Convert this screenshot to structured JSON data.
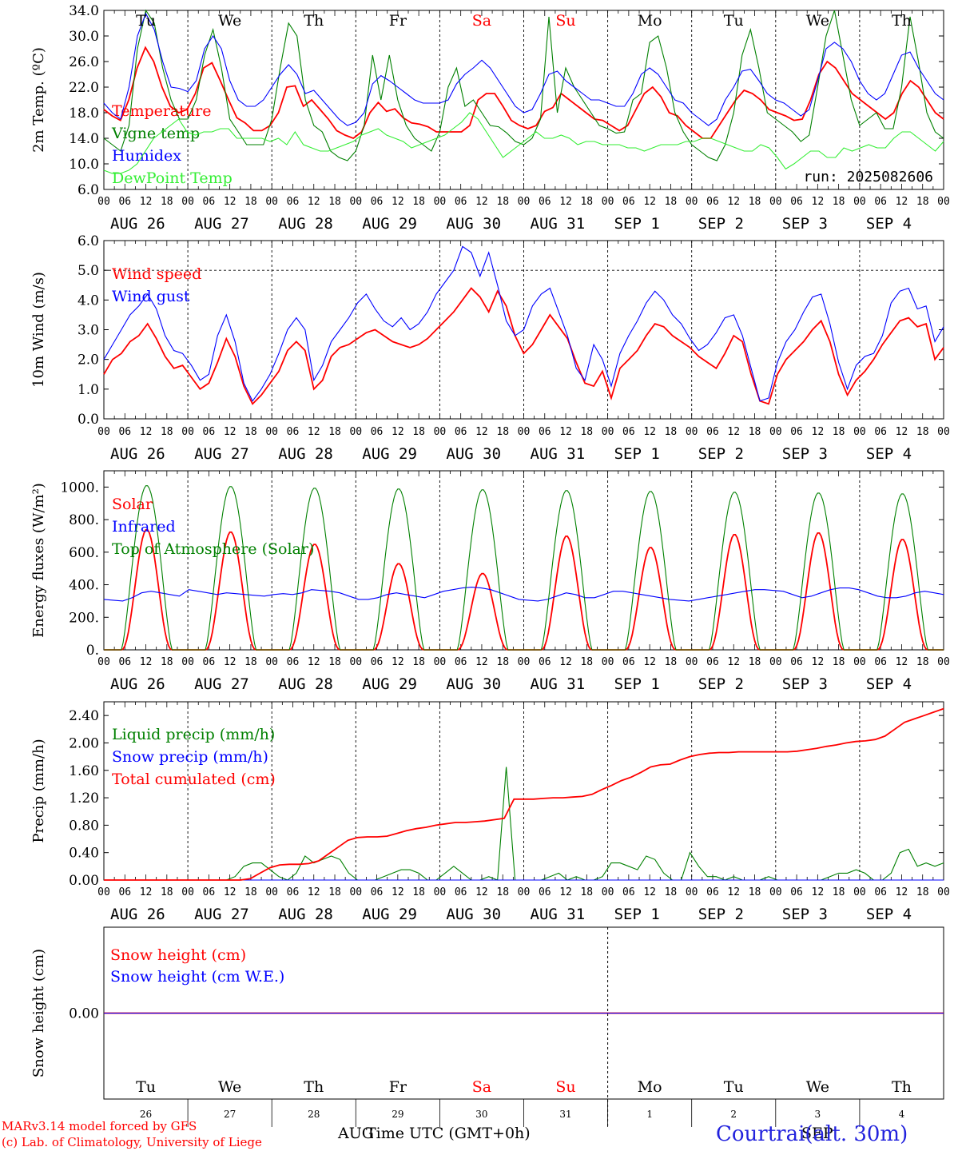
{
  "colors": {
    "red": "#ff0000",
    "green": "#008000",
    "blue": "#0000ff",
    "lightgreen": "#33ee33",
    "black": "#000000"
  },
  "day_labels": [
    "AUG 26",
    "AUG 27",
    "AUG 28",
    "AUG 29",
    "AUG 30",
    "AUG 31",
    "SEP  1",
    "SEP  2",
    "SEP  3",
    "SEP  4"
  ],
  "weekdays": [
    "Tu",
    "We",
    "Th",
    "Fr",
    "Sa",
    "Su",
    "Mo",
    "Tu",
    "We",
    "Th"
  ],
  "weekend_days": [
    "Sa",
    "Su"
  ],
  "hour_ticks": [
    "00",
    "06",
    "12",
    "18"
  ],
  "day_numbers": [
    "26",
    "27",
    "28",
    "29",
    "30",
    "31",
    "1",
    "2",
    "3",
    "4"
  ],
  "footer": {
    "credit1": "MARv3.14 model forced by GFS",
    "credit2": "(c) Lab. of Climatology, University of Liege",
    "xlabel": "Time UTC (GMT+0h)",
    "month_left": "AUG",
    "month_right": "SEP",
    "station": "Courtrai(alt. 30m)"
  },
  "chart_data": [
    {
      "type": "line",
      "ylabel": "2m Temp. (ºC)",
      "ylim": [
        6.0,
        34.0
      ],
      "yticks": [
        "6.0",
        "10.0",
        "14.0",
        "18.0",
        "22.0",
        "26.0",
        "30.0",
        "34.0"
      ],
      "annotation": "run: 2025082606",
      "x_days": 10,
      "series": [
        {
          "name": "Temperature",
          "color": "red",
          "values": [
            18.5,
            17.5,
            16.8,
            20,
            25,
            28.2,
            26,
            22,
            19,
            18,
            18.5,
            21,
            25,
            25.8,
            23,
            20,
            17.2,
            16.4,
            15.2,
            15.2,
            16,
            18,
            22,
            22.2,
            19,
            20,
            18.5,
            17,
            15.2,
            14.5,
            14,
            15,
            18,
            19.6,
            18.2,
            18.6,
            17.2,
            16.4,
            16.2,
            15.8,
            15,
            15,
            15,
            15,
            16,
            20,
            21,
            21,
            19,
            16.8,
            16,
            15.5,
            16,
            18.2,
            18.8,
            21,
            20,
            19,
            18,
            17,
            16.8,
            16,
            15.2,
            16,
            18.5,
            21,
            22,
            20.5,
            18,
            17.5,
            16,
            15,
            14,
            14,
            16,
            18,
            20,
            21.5,
            21,
            20,
            18.5,
            18,
            17.5,
            16.8,
            17,
            20,
            24,
            26,
            25,
            23,
            21,
            20,
            19,
            18,
            17,
            18,
            21,
            23,
            22,
            20,
            18,
            17
          ]
        },
        {
          "name": "Vigne temp",
          "color": "green",
          "values": [
            14,
            13,
            12,
            16,
            28,
            34,
            32,
            25,
            20,
            17,
            17,
            20,
            27,
            31,
            25,
            17,
            15,
            13,
            13,
            13,
            17,
            25,
            32,
            30,
            20,
            16,
            15,
            12,
            11,
            10.5,
            12,
            16,
            27,
            20,
            27,
            20,
            16,
            14,
            13,
            12,
            15,
            22,
            25,
            19,
            20,
            18,
            16,
            15.8,
            14.8,
            13.5,
            13,
            14,
            17,
            33,
            18,
            25,
            22,
            20,
            18,
            16,
            15.5,
            14.8,
            15,
            20,
            21,
            29,
            30,
            25,
            18,
            15,
            13,
            12,
            11,
            10.5,
            13,
            18,
            27,
            31,
            25,
            18,
            17,
            16,
            15,
            13.5,
            14.5,
            22,
            30,
            34,
            27,
            20,
            16,
            17,
            18,
            15.5,
            15.5,
            22,
            33,
            26,
            18,
            15,
            14
          ]
        },
        {
          "name": "Humidex",
          "color": "blue",
          "values": [
            19.5,
            18,
            17,
            22,
            30,
            33.5,
            31,
            26,
            22,
            21.8,
            21.3,
            23,
            28,
            30,
            28,
            23,
            20,
            19,
            19,
            20,
            22,
            24,
            25.5,
            24,
            21,
            21.5,
            20,
            18.5,
            17,
            16,
            16.5,
            18,
            22.5,
            23.8,
            23,
            22,
            21,
            20,
            19.5,
            19.5,
            19.5,
            20,
            22.5,
            24,
            25,
            26.2,
            25,
            23,
            21,
            19,
            18,
            18.5,
            21,
            24,
            24.5,
            23,
            22,
            21,
            20,
            20,
            19.5,
            19,
            19,
            21,
            24,
            25,
            24,
            22,
            20,
            19.5,
            18,
            17,
            16,
            17,
            20,
            22,
            24.5,
            24.8,
            23,
            21,
            20,
            19.5,
            18.5,
            17.5,
            18.5,
            23,
            28,
            29,
            28,
            26,
            23,
            21,
            20,
            21,
            24,
            27,
            27.5,
            25,
            23,
            21,
            20
          ]
        },
        {
          "name": "DewPoint Temp",
          "color": "lightgreen",
          "values": [
            9,
            8.5,
            8.5,
            9,
            10,
            12,
            14,
            15,
            16,
            17,
            15,
            14.5,
            15,
            15,
            15.5,
            15.5,
            14,
            14,
            14,
            14,
            13.5,
            14,
            13,
            15,
            13,
            12.5,
            12,
            12,
            12.5,
            13,
            13.5,
            14.5,
            15,
            15.5,
            14.5,
            14,
            13.5,
            12.5,
            13,
            13.5,
            14,
            14.5,
            15.5,
            16.5,
            18,
            17,
            15,
            13,
            11,
            12,
            13,
            14,
            15,
            14,
            14,
            14.5,
            14,
            13,
            13.5,
            13.5,
            13,
            13,
            13,
            12.5,
            12.5,
            12,
            12.5,
            13,
            13,
            13,
            13.5,
            13.5,
            14,
            14,
            13.5,
            13,
            12.5,
            12,
            12,
            13,
            12.5,
            11,
            9.2,
            10,
            11,
            12,
            12,
            11,
            11,
            12.5,
            12,
            12.5,
            13,
            12.5,
            12.5,
            14,
            15,
            15,
            14,
            13,
            12,
            13.5
          ]
        }
      ]
    },
    {
      "type": "line",
      "ylabel": "10m Wind (m/s)",
      "ylim": [
        0.0,
        6.0
      ],
      "yticks": [
        "0.0",
        "1.0",
        "2.0",
        "3.0",
        "4.0",
        "5.0",
        "6.0"
      ],
      "hline": 5.0,
      "x_days": 10,
      "series": [
        {
          "name": "Wind speed",
          "color": "red",
          "values": [
            1.5,
            2,
            2.2,
            2.6,
            2.8,
            3.2,
            2.7,
            2.1,
            1.7,
            1.8,
            1.4,
            1.0,
            1.2,
            1.9,
            2.7,
            2.1,
            1.1,
            0.5,
            0.8,
            1.2,
            1.6,
            2.3,
            2.6,
            2.3,
            1.0,
            1.3,
            2.1,
            2.4,
            2.5,
            2.7,
            2.9,
            3.0,
            2.8,
            2.6,
            2.5,
            2.4,
            2.5,
            2.7,
            3.0,
            3.3,
            3.6,
            4.0,
            4.4,
            4.1,
            3.6,
            4.3,
            3.8,
            2.8,
            2.2,
            2.5,
            3.0,
            3.5,
            3.1,
            2.7,
            1.9,
            1.2,
            1.1,
            1.6,
            0.7,
            1.7,
            2.0,
            2.3,
            2.8,
            3.2,
            3.1,
            2.8,
            2.6,
            2.4,
            2.1,
            1.9,
            1.7,
            2.2,
            2.8,
            2.6,
            1.5,
            0.6,
            0.5,
            1.5,
            2.0,
            2.3,
            2.6,
            3.0,
            3.3,
            2.6,
            1.5,
            0.8,
            1.3,
            1.6,
            2.0,
            2.5,
            2.9,
            3.3,
            3.4,
            3.1,
            3.2,
            2.0,
            2.4
          ]
        },
        {
          "name": "Wind gust",
          "color": "blue",
          "values": [
            2,
            2.5,
            3,
            3.5,
            3.8,
            4.2,
            3.7,
            2.8,
            2.3,
            2.2,
            1.8,
            1.3,
            1.5,
            2.8,
            3.5,
            2.6,
            1.2,
            0.6,
            1.0,
            1.5,
            2.2,
            3.0,
            3.4,
            3.0,
            1.3,
            1.8,
            2.6,
            3.0,
            3.4,
            3.9,
            4.2,
            3.7,
            3.3,
            3.1,
            3.4,
            3.0,
            3.2,
            3.6,
            4.2,
            4.6,
            5.0,
            5.8,
            5.6,
            4.8,
            5.6,
            4.5,
            3.3,
            2.8,
            3.0,
            3.8,
            4.2,
            4.4,
            3.6,
            2.8,
            1.7,
            1.3,
            2.5,
            2.0,
            1.1,
            2.2,
            2.8,
            3.3,
            3.9,
            4.3,
            4.0,
            3.5,
            3.2,
            2.7,
            2.3,
            2.5,
            2.9,
            3.4,
            3.5,
            2.8,
            1.7,
            0.6,
            0.7,
            1.9,
            2.6,
            3.0,
            3.6,
            4.1,
            4.2,
            3.2,
            1.9,
            1.0,
            1.8,
            2.1,
            2.2,
            2.8,
            3.9,
            4.3,
            4.4,
            3.7,
            3.8,
            2.6,
            3.1
          ]
        }
      ]
    },
    {
      "type": "line",
      "ylabel": "Energy fluxes (W/m²)",
      "ylim": [
        0,
        1100
      ],
      "yticks": [
        "0.",
        "200.",
        "400.",
        "600.",
        "800.",
        "1000."
      ],
      "x_days": 10,
      "series": [
        {
          "name": "Solar",
          "color": "red",
          "peaks": [
            740,
            725,
            650,
            530,
            470,
            700,
            630,
            710,
            720,
            680
          ]
        },
        {
          "name": "Infrared",
          "color": "blue",
          "values": [
            310,
            305,
            300,
            320,
            350,
            360,
            350,
            340,
            330,
            370,
            360,
            350,
            340,
            350,
            345,
            340,
            335,
            330,
            340,
            345,
            340,
            350,
            370,
            365,
            360,
            350,
            330,
            310,
            310,
            320,
            340,
            350,
            340,
            330,
            320,
            340,
            360,
            370,
            380,
            385,
            380,
            370,
            350,
            330,
            310,
            305,
            300,
            310,
            330,
            350,
            340,
            320,
            320,
            340,
            360,
            360,
            350,
            340,
            330,
            320,
            310,
            305,
            300,
            310,
            320,
            330,
            340,
            350,
            360,
            370,
            370,
            365,
            360,
            340,
            320,
            330,
            350,
            370,
            380,
            380,
            370,
            350,
            330,
            320,
            320,
            330,
            350,
            360,
            350,
            340
          ]
        },
        {
          "name": "Top of Atmosphere (Solar)",
          "color": "green",
          "peaks": [
            1010,
            1005,
            995,
            990,
            985,
            980,
            975,
            970,
            965,
            960
          ]
        }
      ]
    },
    {
      "type": "line",
      "ylabel": "Precip (mm/h)",
      "ylim": [
        0.0,
        2.6
      ],
      "yticks": [
        "0.00",
        "0.40",
        "0.80",
        "1.20",
        "1.60",
        "2.00",
        "2.40"
      ],
      "x_days": 10,
      "series": [
        {
          "name": "Liquid precip (mm/h)",
          "color": "green",
          "values": [
            0,
            0,
            0,
            0,
            0,
            0,
            0,
            0,
            0,
            0,
            0,
            0,
            0,
            0,
            0,
            0.05,
            0.2,
            0.25,
            0.25,
            0.15,
            0.05,
            0,
            0.1,
            0.35,
            0.25,
            0.3,
            0.35,
            0.3,
            0.1,
            0,
            0,
            0,
            0.05,
            0.1,
            0.15,
            0.15,
            0.1,
            0,
            0,
            0.1,
            0.2,
            0.1,
            0,
            0,
            0.05,
            0,
            1.65,
            0,
            0,
            0,
            0,
            0.05,
            0.1,
            0,
            0.05,
            0,
            0,
            0.05,
            0.25,
            0.25,
            0.2,
            0.15,
            0.35,
            0.3,
            0.1,
            0,
            0,
            0.4,
            0.2,
            0.05,
            0.05,
            0,
            0.05,
            0,
            0,
            0,
            0.05,
            0,
            0,
            0,
            0,
            0,
            0,
            0.05,
            0.1,
            0.1,
            0.15,
            0.1,
            0,
            0,
            0.1,
            0.4,
            0.45,
            0.2,
            0.25,
            0.2,
            0.25
          ]
        },
        {
          "name": "Snow precip (mm/h)",
          "color": "blue",
          "values": [
            0,
            0
          ]
        },
        {
          "name": "Total cumulated (cm)",
          "color": "red",
          "values": [
            0,
            0,
            0,
            0,
            0,
            0,
            0,
            0,
            0,
            0,
            0,
            0,
            0,
            0,
            0,
            0.02,
            0.1,
            0.18,
            0.22,
            0.23,
            0.23,
            0.24,
            0.28,
            0.38,
            0.48,
            0.58,
            0.62,
            0.63,
            0.63,
            0.64,
            0.68,
            0.72,
            0.75,
            0.77,
            0.8,
            0.82,
            0.84,
            0.84,
            0.85,
            0.86,
            0.88,
            0.9,
            1.18,
            1.18,
            1.18,
            1.19,
            1.2,
            1.2,
            1.21,
            1.22,
            1.25,
            1.32,
            1.38,
            1.45,
            1.5,
            1.57,
            1.65,
            1.68,
            1.69,
            1.75,
            1.8,
            1.83,
            1.85,
            1.86,
            1.86,
            1.87,
            1.87,
            1.87,
            1.87,
            1.87,
            1.87,
            1.88,
            1.9,
            1.92,
            1.95,
            1.97,
            2.0,
            2.02,
            2.03,
            2.05,
            2.1,
            2.2,
            2.3,
            2.35,
            2.4,
            2.45,
            2.5
          ]
        }
      ]
    },
    {
      "type": "line",
      "ylabel": "Snow height (cm)",
      "ylim": [
        -1,
        1
      ],
      "yticks": [
        "0.00"
      ],
      "x_days": 10,
      "series": [
        {
          "name": "Snow height (cm)",
          "color": "red",
          "values": [
            0,
            0
          ]
        },
        {
          "name": "Snow height (cm W.E.)",
          "color": "blue",
          "values": [
            0,
            0
          ]
        }
      ]
    }
  ]
}
